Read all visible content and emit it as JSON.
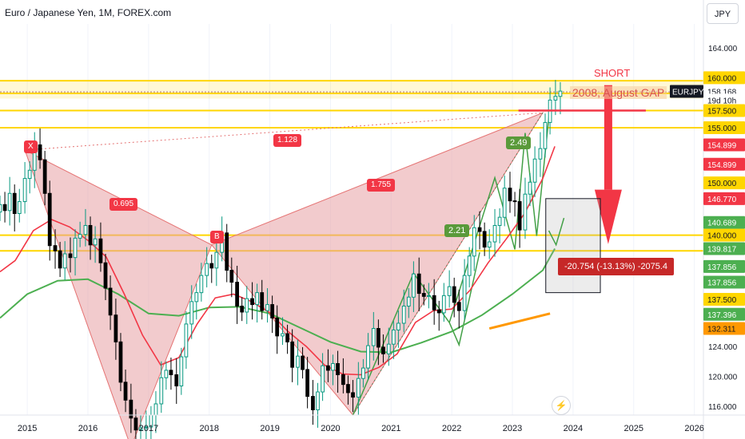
{
  "header": {
    "title": "Euro / Japanese Yen, 1M, FOREX.com",
    "currency_button": "JPY"
  },
  "colors": {
    "up_candle": "#089981",
    "down_candle": "#000000",
    "ma_fast": "#f23645",
    "ma_slow": "#4caf50",
    "pattern_fill": "#e8a0a4",
    "level_line": "#ffd600",
    "accent_red": "#f23645",
    "price_axis_bg": "#ffffff"
  },
  "annotations": {
    "short_label": "SHORT",
    "gap_label": "2008, August GAP",
    "price_change": "-20.754 (-13.13%) -2075.4",
    "bolt_icon": "lightning-icon"
  },
  "pattern_labels": {
    "x": "X",
    "b": "B",
    "ratio_xb": "0.695",
    "ratio_xc": "1.128",
    "ratio_bc": "1.755",
    "ratio_green_1": "2.49",
    "ratio_green_2": "2.21"
  },
  "price_axis": {
    "tick_labels": [
      "164.000",
      "124.000",
      "120.000",
      "116.000"
    ],
    "badges": [
      {
        "text": "160.000",
        "price": 160.0,
        "bg": "#ffd600",
        "fg": "#131722"
      },
      {
        "text": "EURJPY",
        "price": 158.168,
        "bg": "#131722",
        "fg": "#ffffff",
        "side": "left"
      },
      {
        "text": "158.168",
        "price": 158.168,
        "bg": "#ffffff",
        "fg": "#131722"
      },
      {
        "text": "19d 10h",
        "price": 157.0,
        "bg": "#ffffff",
        "fg": "#131722"
      },
      {
        "text": "157.500",
        "price": 155.6,
        "bg": "#ffd600",
        "fg": "#131722"
      },
      {
        "text": "155.000",
        "price": 153.3,
        "bg": "#ffd600",
        "fg": "#131722"
      },
      {
        "text": "154.899",
        "price": 151.0,
        "bg": "#f23645",
        "fg": "#ffffff"
      },
      {
        "text": "154.899",
        "price": 148.4,
        "bg": "#f23645",
        "fg": "#ffffff"
      },
      {
        "text": "150.000",
        "price": 145.9,
        "bg": "#ffd600",
        "fg": "#131722"
      },
      {
        "text": "146.770",
        "price": 143.8,
        "bg": "#f23645",
        "fg": "#ffffff"
      },
      {
        "text": "140.689",
        "price": 140.6,
        "bg": "#4caf50",
        "fg": "#ffffff"
      },
      {
        "text": "140.000",
        "price": 138.9,
        "bg": "#ffd600",
        "fg": "#131722"
      },
      {
        "text": "139.817",
        "price": 137.1,
        "bg": "#4caf50",
        "fg": "#ffffff"
      },
      {
        "text": "137.856",
        "price": 134.7,
        "bg": "#4caf50",
        "fg": "#ffffff"
      },
      {
        "text": "137.856",
        "price": 132.6,
        "bg": "#4caf50",
        "fg": "#ffffff"
      },
      {
        "text": "137.500",
        "price": 130.3,
        "bg": "#ffd600",
        "fg": "#131722"
      },
      {
        "text": "137.396",
        "price": 128.3,
        "bg": "#4caf50",
        "fg": "#ffffff"
      },
      {
        "text": "132.311",
        "price": 126.4,
        "bg": "#ff9800",
        "fg": "#131722"
      }
    ]
  },
  "chart_data": {
    "type": "candlestick",
    "title": "Euro / Japanese Yen, 1M, FOREX.com",
    "x_ticks": [
      "2015",
      "2016",
      "2017",
      "2018",
      "2019",
      "2020",
      "2021",
      "2022",
      "2023",
      "2024",
      "2025",
      "2026"
    ],
    "y_ticks": [
      164,
      124,
      120,
      116
    ],
    "ylim": [
      114.8,
      167.2
    ],
    "xlim": [
      2014.55,
      2026.15
    ],
    "close_series": [
      [
        2014.55,
        143.0
      ],
      [
        2014.63,
        142.2
      ],
      [
        2014.71,
        144.5
      ],
      [
        2014.79,
        141.8
      ],
      [
        2014.87,
        143.4
      ],
      [
        2014.96,
        146.5
      ],
      [
        2015.04,
        147.6
      ],
      [
        2015.12,
        151.0
      ],
      [
        2015.21,
        149.0
      ],
      [
        2015.29,
        144.5
      ],
      [
        2015.37,
        137.5
      ],
      [
        2015.46,
        136.8
      ],
      [
        2015.54,
        134.5
      ],
      [
        2015.62,
        136.4
      ],
      [
        2015.71,
        135.9
      ],
      [
        2015.79,
        138.5
      ],
      [
        2015.87,
        139.0
      ],
      [
        2015.96,
        140.2
      ],
      [
        2016.04,
        137.6
      ],
      [
        2016.12,
        138.4
      ],
      [
        2016.21,
        135.2
      ],
      [
        2016.29,
        131.8
      ],
      [
        2016.37,
        128.2
      ],
      [
        2016.46,
        124.6
      ],
      [
        2016.54,
        119.2
      ],
      [
        2016.62,
        116.8
      ],
      [
        2016.71,
        114.4
      ],
      [
        2016.79,
        112.8
      ],
      [
        2016.87,
        113.1
      ],
      [
        2016.96,
        113.2
      ],
      [
        2017.04,
        114.8
      ],
      [
        2017.12,
        116.3
      ],
      [
        2017.21,
        119.8
      ],
      [
        2017.29,
        120.8
      ],
      [
        2017.37,
        120.2
      ],
      [
        2017.46,
        118.7
      ],
      [
        2017.54,
        122.6
      ],
      [
        2017.62,
        127.0
      ],
      [
        2017.71,
        130.0
      ],
      [
        2017.79,
        131.2
      ],
      [
        2017.87,
        133.5
      ],
      [
        2017.96,
        135.1
      ],
      [
        2018.04,
        134.5
      ],
      [
        2018.12,
        136.6
      ],
      [
        2018.21,
        139.2
      ],
      [
        2018.29,
        134.2
      ],
      [
        2018.37,
        132.6
      ],
      [
        2018.46,
        129.4
      ],
      [
        2018.54,
        128.6
      ],
      [
        2018.62,
        130.4
      ],
      [
        2018.71,
        129.6
      ],
      [
        2018.79,
        131.2
      ],
      [
        2018.87,
        128.8
      ],
      [
        2018.96,
        129.6
      ],
      [
        2019.04,
        127.8
      ],
      [
        2019.12,
        125.4
      ],
      [
        2019.21,
        125.7
      ],
      [
        2019.29,
        124.6
      ],
      [
        2019.37,
        121.2
      ],
      [
        2019.46,
        122.7
      ],
      [
        2019.54,
        120.9
      ],
      [
        2019.62,
        117.3
      ],
      [
        2019.71,
        115.5
      ],
      [
        2019.79,
        117.9
      ],
      [
        2019.87,
        121.4
      ],
      [
        2019.96,
        120.8
      ],
      [
        2020.04,
        121.7
      ],
      [
        2020.12,
        120.2
      ],
      [
        2020.21,
        118.9
      ],
      [
        2020.29,
        117.8
      ],
      [
        2020.37,
        117.2
      ],
      [
        2020.46,
        119.7
      ],
      [
        2020.54,
        121.1
      ],
      [
        2020.62,
        124.1
      ],
      [
        2020.71,
        126.4
      ],
      [
        2020.79,
        123.9
      ],
      [
        2020.87,
        123.0
      ],
      [
        2020.96,
        124.3
      ],
      [
        2021.04,
        126.2
      ],
      [
        2021.12,
        127.1
      ],
      [
        2021.21,
        129.4
      ],
      [
        2021.29,
        130.6
      ],
      [
        2021.37,
        133.7
      ],
      [
        2021.46,
        131.1
      ],
      [
        2021.54,
        130.7
      ],
      [
        2021.62,
        130.8
      ],
      [
        2021.71,
        128.9
      ],
      [
        2021.79,
        128.5
      ],
      [
        2021.87,
        130.8
      ],
      [
        2021.96,
        132.0
      ],
      [
        2022.04,
        129.9
      ],
      [
        2022.12,
        128.8
      ],
      [
        2022.21,
        133.5
      ],
      [
        2022.29,
        136.1
      ],
      [
        2022.37,
        139.9
      ],
      [
        2022.46,
        139.4
      ],
      [
        2022.54,
        137.3
      ],
      [
        2022.62,
        138.0
      ],
      [
        2022.71,
        140.2
      ],
      [
        2022.79,
        141.3
      ],
      [
        2022.87,
        145.2
      ],
      [
        2022.96,
        143.5
      ],
      [
        2023.04,
        143.4
      ],
      [
        2023.12,
        139.6
      ],
      [
        2023.21,
        144.4
      ],
      [
        2023.29,
        146.0
      ],
      [
        2023.37,
        149.1
      ],
      [
        2023.46,
        150.5
      ],
      [
        2023.54,
        154.0
      ],
      [
        2023.62,
        157.0
      ],
      [
        2023.71,
        157.5
      ],
      [
        2023.79,
        158.2
      ]
    ],
    "ma_fast": [
      [
        2014.55,
        134.0
      ],
      [
        2014.8,
        135.5
      ],
      [
        2015.1,
        139.5
      ],
      [
        2015.4,
        141.0
      ],
      [
        2015.7,
        140.0
      ],
      [
        2016.0,
        138.2
      ],
      [
        2016.3,
        136.0
      ],
      [
        2016.6,
        131.0
      ],
      [
        2016.9,
        125.5
      ],
      [
        2017.2,
        121.5
      ],
      [
        2017.5,
        122.5
      ],
      [
        2017.8,
        127.0
      ],
      [
        2018.1,
        130.5
      ],
      [
        2018.4,
        131.0
      ],
      [
        2018.7,
        130.0
      ],
      [
        2019.0,
        128.5
      ],
      [
        2019.3,
        126.0
      ],
      [
        2019.6,
        124.0
      ],
      [
        2019.9,
        121.5
      ],
      [
        2020.2,
        120.3
      ],
      [
        2020.5,
        120.2
      ],
      [
        2020.8,
        121.2
      ],
      [
        2021.1,
        123.0
      ],
      [
        2021.4,
        127.2
      ],
      [
        2021.7,
        128.8
      ],
      [
        2022.0,
        129.0
      ],
      [
        2022.3,
        131.5
      ],
      [
        2022.6,
        135.2
      ],
      [
        2022.9,
        138.4
      ],
      [
        2023.2,
        141.8
      ],
      [
        2023.5,
        146.5
      ],
      [
        2023.7,
        150.8
      ]
    ],
    "ma_slow": [
      [
        2014.55,
        127.8
      ],
      [
        2015.0,
        131.0
      ],
      [
        2015.5,
        132.8
      ],
      [
        2016.0,
        133.0
      ],
      [
        2016.5,
        131.0
      ],
      [
        2017.0,
        128.4
      ],
      [
        2017.5,
        128.1
      ],
      [
        2018.0,
        129.2
      ],
      [
        2018.5,
        129.3
      ],
      [
        2019.0,
        128.4
      ],
      [
        2019.5,
        126.5
      ],
      [
        2020.0,
        124.6
      ],
      [
        2020.5,
        123.3
      ],
      [
        2021.0,
        123.2
      ],
      [
        2021.5,
        124.5
      ],
      [
        2022.0,
        126.0
      ],
      [
        2022.5,
        128.2
      ],
      [
        2023.0,
        131.0
      ],
      [
        2023.5,
        134.2
      ],
      [
        2023.7,
        137.1
      ]
    ]
  }
}
